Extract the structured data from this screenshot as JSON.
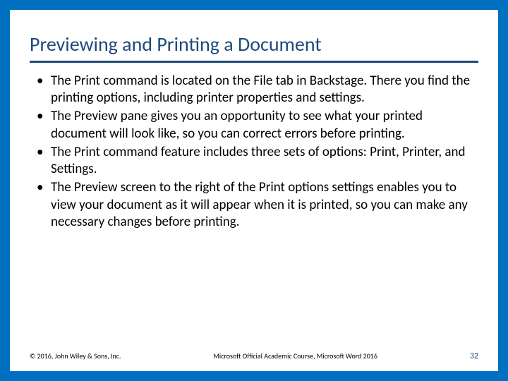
{
  "colors": {
    "border": "#0070c0",
    "title": "#1f497d",
    "underline": "#1f497d",
    "body_text": "#000000",
    "page_number": "#1f497d",
    "background": "#ffffff"
  },
  "typography": {
    "title_fontsize": 28,
    "body_fontsize": 19,
    "footer_fontsize": 10,
    "pagenum_fontsize": 12,
    "font_family": "Segoe UI, Calibri, Arial, sans-serif"
  },
  "slide": {
    "title": "Previewing and Printing a Document",
    "bullets": [
      "The Print command is located on the File tab in Backstage. There you find the printing options, including printer properties and settings.",
      "The Preview pane gives you an opportunity to see what your printed document will look like, so you can correct errors before printing.",
      "The Print command feature includes three sets of options: Print, Printer, and Settings.",
      "The Preview screen to the right of the Print options settings enables you to view your document as it will appear when it is printed, so you can make any necessary changes before printing."
    ]
  },
  "footer": {
    "copyright": "© 2016, John Wiley & Sons, Inc.",
    "course": "Microsoft Official Academic Course, Microsoft Word 2016",
    "page": "32"
  }
}
